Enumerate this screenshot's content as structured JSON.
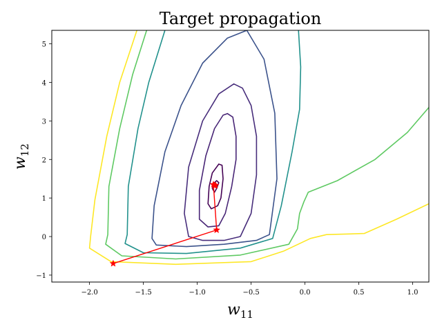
{
  "chart_data": {
    "type": "contour",
    "title": "Target propagation",
    "xlabel": {
      "base": "w",
      "sub": "11"
    },
    "ylabel": {
      "base": "w",
      "sub": "12"
    },
    "xlim": [
      -2.35,
      1.15
    ],
    "ylim": [
      -1.18,
      5.35
    ],
    "xticks": [
      -2.0,
      -1.5,
      -1.0,
      -0.5,
      0.0,
      0.5,
      1.0
    ],
    "xtick_labels": [
      "−2.0",
      "−1.5",
      "−1.0",
      "−0.5",
      "0.0",
      "0.5",
      "1.0"
    ],
    "yticks": [
      -1,
      0,
      1,
      2,
      3,
      4,
      5
    ],
    "ytick_labels": [
      "−1",
      "0",
      "1",
      "2",
      "3",
      "4",
      "5"
    ],
    "contours": [
      {
        "color": "#fde725",
        "points": [
          [
            -1.56,
            5.35
          ],
          [
            -1.72,
            4.0
          ],
          [
            -1.84,
            2.6
          ],
          [
            -1.95,
            0.95
          ],
          [
            -1.99,
            0.0
          ],
          [
            -2.0,
            -0.3
          ],
          [
            -1.8,
            -0.65
          ],
          [
            -1.2,
            -0.72
          ],
          [
            -0.5,
            -0.65
          ],
          [
            -0.2,
            -0.38
          ],
          [
            0.05,
            -0.05
          ],
          [
            0.2,
            0.05
          ],
          [
            0.55,
            0.08
          ],
          [
            0.85,
            0.45
          ],
          [
            1.15,
            0.85
          ]
        ]
      },
      {
        "color": "#5ec962",
        "points": [
          [
            -1.47,
            5.35
          ],
          [
            -1.6,
            4.2
          ],
          [
            -1.72,
            2.8
          ],
          [
            -1.82,
            1.3
          ],
          [
            -1.83,
            0.05
          ],
          [
            -1.85,
            -0.2
          ],
          [
            -1.7,
            -0.5
          ],
          [
            -1.2,
            -0.58
          ],
          [
            -0.6,
            -0.48
          ],
          [
            -0.15,
            -0.2
          ],
          [
            -0.07,
            0.2
          ],
          [
            -0.05,
            0.6
          ],
          [
            -0.01,
            0.9
          ],
          [
            0.03,
            1.15
          ],
          [
            0.3,
            1.45
          ],
          [
            0.65,
            2.0
          ],
          [
            0.95,
            2.7
          ],
          [
            1.15,
            3.35
          ]
        ]
      },
      {
        "color": "#21918c",
        "points": [
          [
            -1.3,
            5.35
          ],
          [
            -1.45,
            4.0
          ],
          [
            -1.55,
            2.8
          ],
          [
            -1.64,
            1.3
          ],
          [
            -1.65,
            0.05
          ],
          [
            -1.67,
            -0.18
          ],
          [
            -1.5,
            -0.42
          ],
          [
            -1.1,
            -0.44
          ],
          [
            -0.6,
            -0.3
          ],
          [
            -0.3,
            -0.05
          ],
          [
            -0.22,
            0.8
          ],
          [
            -0.12,
            2.2
          ],
          [
            -0.05,
            3.3
          ],
          [
            -0.04,
            4.4
          ],
          [
            -0.06,
            5.35
          ]
        ]
      },
      {
        "color": "#3b528b",
        "points": [
          [
            -0.54,
            5.35
          ],
          [
            -0.38,
            4.6
          ],
          [
            -0.28,
            3.2
          ],
          [
            -0.26,
            1.5
          ],
          [
            -0.33,
            0.05
          ],
          [
            -0.45,
            -0.1
          ],
          [
            -0.75,
            -0.2
          ],
          [
            -1.1,
            -0.26
          ],
          [
            -1.38,
            -0.22
          ],
          [
            -1.42,
            -0.05
          ],
          [
            -1.4,
            0.8
          ],
          [
            -1.3,
            2.2
          ],
          [
            -1.15,
            3.4
          ],
          [
            -0.95,
            4.5
          ],
          [
            -0.72,
            5.15
          ],
          [
            -0.54,
            5.35
          ]
        ]
      },
      {
        "color": "#472d7b",
        "points": [
          [
            -0.66,
            3.96
          ],
          [
            -0.58,
            3.85
          ],
          [
            -0.5,
            3.4
          ],
          [
            -0.45,
            2.6
          ],
          [
            -0.45,
            1.6
          ],
          [
            -0.5,
            0.6
          ],
          [
            -0.6,
            0.0
          ],
          [
            -0.75,
            -0.1
          ],
          [
            -0.95,
            -0.1
          ],
          [
            -1.08,
            0.0
          ],
          [
            -1.12,
            0.6
          ],
          [
            -1.08,
            1.8
          ],
          [
            -0.95,
            3.0
          ],
          [
            -0.8,
            3.7
          ],
          [
            -0.66,
            3.96
          ]
        ]
      },
      {
        "color": "#482576",
        "points": [
          [
            -0.72,
            3.19
          ],
          [
            -0.67,
            3.1
          ],
          [
            -0.64,
            2.6
          ],
          [
            -0.64,
            2.0
          ],
          [
            -0.68,
            1.3
          ],
          [
            -0.74,
            0.6
          ],
          [
            -0.8,
            0.28
          ],
          [
            -0.9,
            0.25
          ],
          [
            -0.98,
            0.45
          ],
          [
            -0.98,
            1.2
          ],
          [
            -0.92,
            2.1
          ],
          [
            -0.84,
            2.8
          ],
          [
            -0.76,
            3.15
          ],
          [
            -0.72,
            3.19
          ]
        ]
      },
      {
        "color": "#440154",
        "points": [
          [
            -0.8,
            1.88
          ],
          [
            -0.77,
            1.85
          ],
          [
            -0.76,
            1.5
          ],
          [
            -0.78,
            1.0
          ],
          [
            -0.81,
            0.8
          ],
          [
            -0.87,
            0.72
          ],
          [
            -0.9,
            0.85
          ],
          [
            -0.89,
            1.3
          ],
          [
            -0.86,
            1.65
          ],
          [
            -0.8,
            1.88
          ]
        ]
      },
      {
        "color": "#440154",
        "points": [
          [
            -0.82,
            1.45
          ],
          [
            -0.8,
            1.4
          ],
          [
            -0.82,
            1.25
          ],
          [
            -0.84,
            1.15
          ],
          [
            -0.86,
            1.25
          ],
          [
            -0.84,
            1.4
          ],
          [
            -0.82,
            1.45
          ]
        ]
      }
    ],
    "trajectory": {
      "color": "#ff0000",
      "points": [
        [
          -1.78,
          -0.7
        ],
        [
          -0.82,
          0.17
        ],
        [
          -0.85,
          1.35
        ],
        [
          -0.83,
          1.33
        ],
        [
          -0.84,
          1.32
        ]
      ]
    }
  }
}
